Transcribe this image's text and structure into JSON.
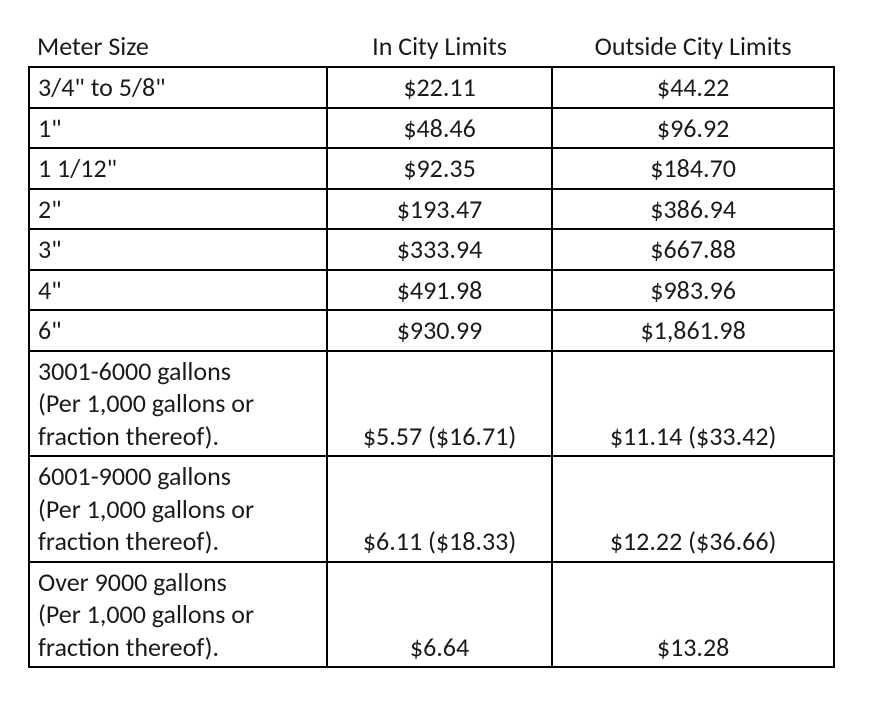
{
  "table": {
    "type": "table",
    "background_color": "#ffffff",
    "text_color": "#1a1a1a",
    "border_color": "#000000",
    "font_family": "Calibri",
    "font_size_pt": 20,
    "columns": [
      {
        "key": "meter_size",
        "label": "Meter Size",
        "align": "left",
        "width_pct": 37
      },
      {
        "key": "in_city",
        "label": "In City Limits",
        "align": "center",
        "width_pct": 28
      },
      {
        "key": "out_city",
        "label": "Outside City Limits",
        "align": "center",
        "width_pct": 35
      }
    ],
    "rows": [
      {
        "size": "3/4\" to 5/8\"",
        "in": "$22.11",
        "out": "$44.22"
      },
      {
        "size": "1\"",
        "in": "$48.46",
        "out": "$96.92"
      },
      {
        "size": "1 1/12\"",
        "in": "$92.35",
        "out": "$184.70"
      },
      {
        "size": "2\"",
        "in": "$193.47",
        "out": "$386.94"
      },
      {
        "size": "3\"",
        "in": "$333.94",
        "out": "$667.88"
      },
      {
        "size": "4\"",
        "in": "$491.98",
        "out": "$983.96"
      },
      {
        "size": "6\"",
        "in": "$930.99",
        "out": "$1,861.98"
      },
      {
        "size_lines": [
          "3001-6000 gallons",
          "(Per 1,000 gallons or",
          "fraction thereof)."
        ],
        "in": "$5.57  ($16.71)",
        "out": "$11.14  ($33.42)"
      },
      {
        "size_lines": [
          "6001-9000 gallons",
          "(Per 1,000 gallons or",
          "fraction thereof)."
        ],
        "in": "$6.11  ($18.33)",
        "out": "$12.22  ($36.66)"
      },
      {
        "size_lines": [
          "Over 9000 gallons",
          "(Per 1,000 gallons or",
          "fraction thereof)."
        ],
        "in": "$6.64",
        "out": "$13.28"
      }
    ]
  }
}
